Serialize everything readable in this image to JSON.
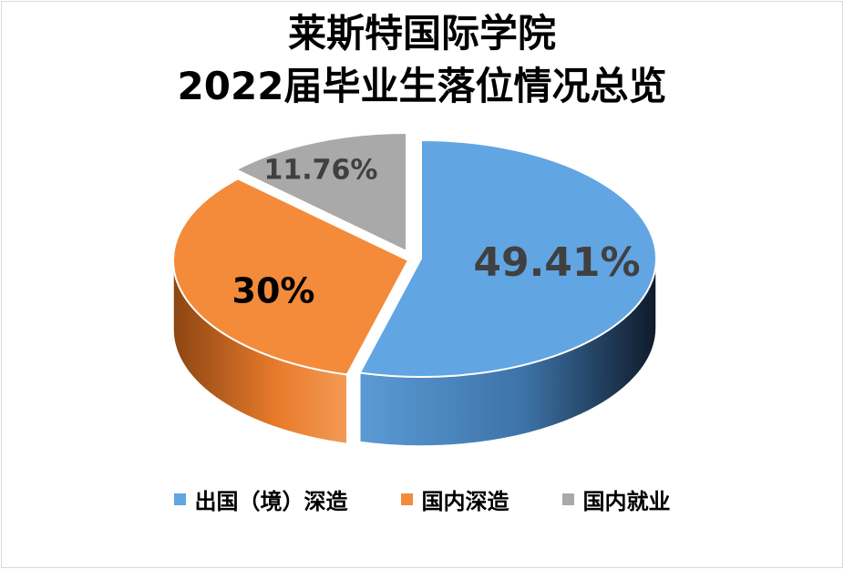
{
  "chart_data": {
    "type": "pie",
    "title_lines": [
      "莱斯特国际学院",
      "2022届毕业生落位情况总览"
    ],
    "categories": [
      "出国（境）深造",
      "国内深造",
      "国内就业"
    ],
    "values": [
      49.41,
      30,
      11.76
    ],
    "data_labels": [
      "49.41%",
      "30%",
      "11.76%"
    ],
    "colors": [
      "#62a5e3",
      "#f38b3a",
      "#a9a9a9"
    ],
    "label_colors": [
      "#404040",
      "#000000",
      "#404040"
    ],
    "legend_position": "bottom",
    "style": "3d-exploded"
  }
}
